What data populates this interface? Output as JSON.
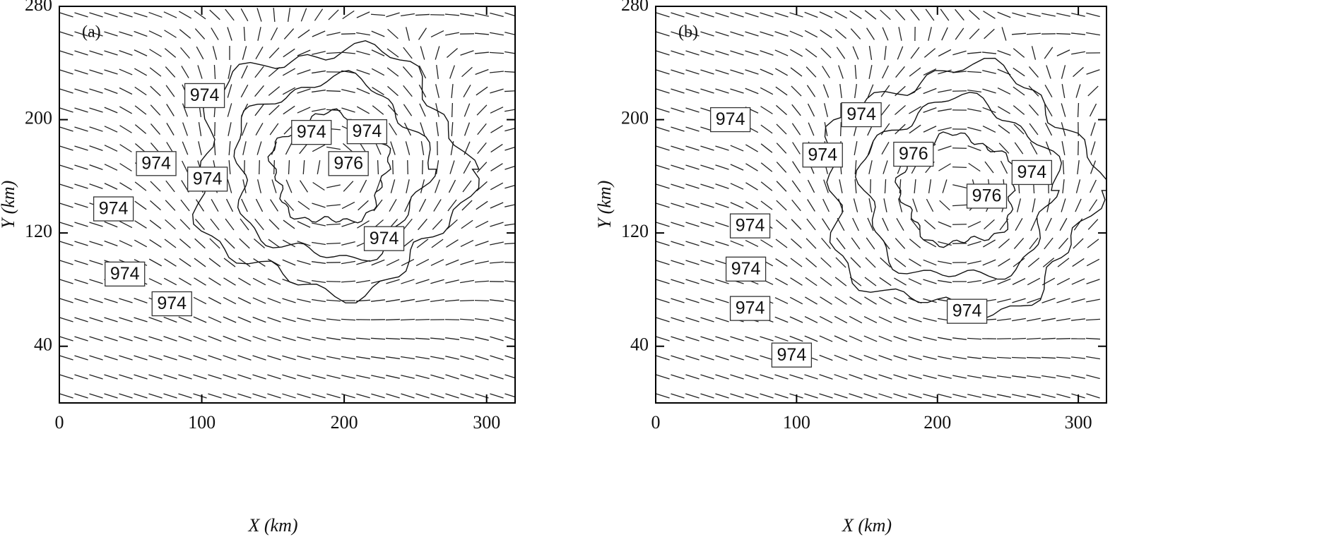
{
  "chart_data": [
    {
      "type": "contour",
      "panel_label": "(a)",
      "xlabel": "X (km)",
      "ylabel": "Y (km)",
      "xlim": [
        0,
        320
      ],
      "ylim": [
        0,
        280
      ],
      "xticks": [
        0,
        100,
        200,
        300
      ],
      "yticks": [
        40,
        120,
        200,
        280
      ],
      "contour_labels": [
        {
          "value": 974,
          "x": 102,
          "y": 217
        },
        {
          "value": 974,
          "x": 177,
          "y": 191
        },
        {
          "value": 974,
          "x": 216,
          "y": 191.5
        },
        {
          "value": 974,
          "x": 68,
          "y": 169
        },
        {
          "value": 974,
          "x": 104,
          "y": 158
        },
        {
          "value": 976,
          "x": 203,
          "y": 169
        },
        {
          "value": 974,
          "x": 38,
          "y": 137
        },
        {
          "value": 974,
          "x": 228,
          "y": 116
        },
        {
          "value": 974,
          "x": 46,
          "y": 91
        },
        {
          "value": 974,
          "x": 79,
          "y": 70
        }
      ]
    },
    {
      "type": "contour",
      "panel_label": "(b)",
      "xlabel": "X (km)",
      "ylabel": "Y (km)",
      "xlim": [
        0,
        320
      ],
      "ylim": [
        0,
        280
      ],
      "xticks": [
        0,
        100,
        200,
        300
      ],
      "yticks": [
        40,
        120,
        200,
        280
      ],
      "contour_labels": [
        {
          "value": 974,
          "x": 53,
          "y": 200
        },
        {
          "value": 974,
          "x": 146,
          "y": 203.5
        },
        {
          "value": 974,
          "x": 118.5,
          "y": 175
        },
        {
          "value": 976,
          "x": 183,
          "y": 175.6
        },
        {
          "value": 974,
          "x": 267,
          "y": 162.7
        },
        {
          "value": 976,
          "x": 235,
          "y": 146
        },
        {
          "value": 974,
          "x": 67,
          "y": 125
        },
        {
          "value": 974,
          "x": 64,
          "y": 94.5
        },
        {
          "value": 974,
          "x": 67,
          "y": 66.7
        },
        {
          "value": 974,
          "x": 221,
          "y": 64.7
        },
        {
          "value": 974,
          "x": 96.5,
          "y": 33.8
        }
      ]
    }
  ]
}
